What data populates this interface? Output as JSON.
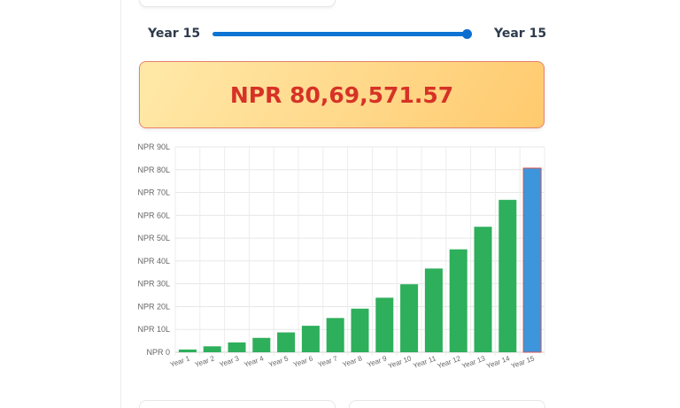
{
  "slider": {
    "start_label": "Year 15",
    "end_label": "Year 15",
    "value": 15,
    "max": 15
  },
  "result": {
    "amount": "NPR 80,69,571.57"
  },
  "colors": {
    "bar": "#2eaf5b",
    "bar_selected": "#3d95db",
    "result_text": "#d63226",
    "slider": "#0d74d3"
  },
  "chart_data": {
    "type": "bar",
    "categories": [
      "Year 1",
      "Year 2",
      "Year 3",
      "Year 4",
      "Year 5",
      "Year 6",
      "Year 7",
      "Year 8",
      "Year 9",
      "Year 10",
      "Year 11",
      "Year 12",
      "Year 13",
      "Year 14",
      "Year 15"
    ],
    "values": [
      1.2,
      2.6,
      4.3,
      6.3,
      8.7,
      11.6,
      15.0,
      19.1,
      23.9,
      29.8,
      36.7,
      45.1,
      55.0,
      66.8,
      80.7
    ],
    "unit": "lakh NPR",
    "selected_index": 14,
    "yticks": [
      "NPR 0",
      "NPR 10L",
      "NPR 20L",
      "NPR 30L",
      "NPR 40L",
      "NPR 50L",
      "NPR 60L",
      "NPR 70L",
      "NPR 80L",
      "NPR 90L"
    ],
    "ylim": [
      0,
      90
    ],
    "grid": true
  }
}
